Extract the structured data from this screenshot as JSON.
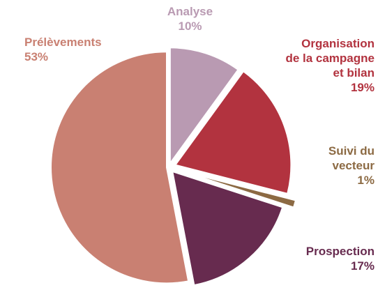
{
  "chart_data": {
    "type": "pie",
    "categories": [
      "Analyse",
      "Organisation de la campagne et bilan",
      "Suivi du vecteur",
      "Prospection",
      "Prélèvements"
    ],
    "values": [
      10,
      19,
      1,
      17,
      53
    ],
    "value_labels": [
      "10%",
      "19%",
      "1%",
      "17%",
      "53%"
    ],
    "colors": [
      "#b99ab2",
      "#b2333f",
      "#8c6a43",
      "#672b4f",
      "#c98072"
    ]
  }
}
